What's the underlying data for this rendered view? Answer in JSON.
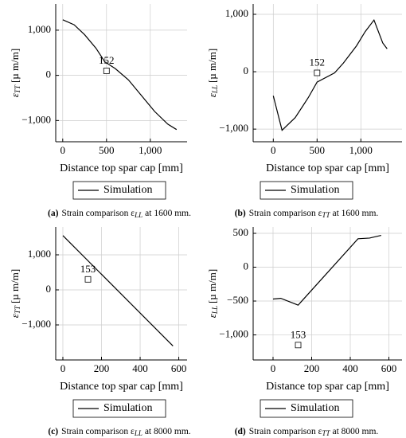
{
  "chart_data": [
    {
      "type": "line",
      "xlabel": "Distance top spar cap [mm]",
      "ylabel_symbol": "ε",
      "ylabel_sub": "TT",
      "ylabel_unit": "[µ m/m]",
      "caption_tag": "(a)",
      "caption_pre": "Strain comparison ε",
      "caption_sub": "LL",
      "caption_post": "at 1600 mm.",
      "x": [
        0,
        130,
        250,
        380,
        480,
        600,
        750,
        900,
        1050,
        1200,
        1300
      ],
      "series": [
        {
          "name": "Simulation",
          "color": "#000000",
          "values": [
            1230,
            1120,
            900,
            600,
            300,
            150,
            -100,
            -450,
            -800,
            -1080,
            -1200
          ]
        }
      ],
      "annotations": [
        {
          "text": "152",
          "x": 500,
          "y": 100
        }
      ],
      "xlim": [
        -80,
        1420
      ],
      "ylim": [
        -1470,
        1580
      ],
      "xticks": [
        0,
        500,
        {
          "value": 1000,
          "label": "1,000"
        }
      ],
      "yticks": [
        {
          "value": -1000,
          "label": "−1,000"
        },
        0,
        {
          "value": 1000,
          "label": "1,000"
        }
      ],
      "grid": true
    },
    {
      "type": "line",
      "xlabel": "Distance top spar cap [mm]",
      "ylabel_symbol": "ε",
      "ylabel_sub": "LL",
      "ylabel_unit": "[µ m/m]",
      "caption_tag": "(b)",
      "caption_pre": "Strain comparison ε",
      "caption_sub": "TT",
      "caption_post": "at 1600 mm.",
      "x": [
        0,
        100,
        250,
        400,
        500,
        700,
        800,
        950,
        1050,
        1150,
        1250,
        1300
      ],
      "series": [
        {
          "name": "Simulation",
          "color": "#000000",
          "values": [
            -420,
            -1020,
            -800,
            -450,
            -180,
            -20,
            150,
            450,
            700,
            900,
            500,
            400
          ]
        }
      ],
      "annotations": [
        {
          "text": "152",
          "x": 500,
          "y": -20
        }
      ],
      "xlim": [
        -230,
        1470
      ],
      "ylim": [
        -1220,
        1180
      ],
      "xticks": [
        0,
        500,
        {
          "value": 1000,
          "label": "1,000"
        }
      ],
      "yticks": [
        {
          "value": -1000,
          "label": "−1,000"
        },
        0,
        {
          "value": 1000,
          "label": "1,000"
        }
      ],
      "grid": true
    },
    {
      "type": "line",
      "xlabel": "Distance top spar cap [mm]",
      "ylabel_symbol": "ε",
      "ylabel_sub": "TT",
      "ylabel_unit": "[µ m/m]",
      "caption_tag": "(c)",
      "caption_pre": "Strain comparison ε",
      "caption_sub": "LL",
      "caption_post": "at 8000 mm.",
      "x": [
        0,
        570
      ],
      "series": [
        {
          "name": "Simulation",
          "color": "#000000",
          "values": [
            1550,
            -1600
          ]
        }
      ],
      "annotations": [
        {
          "text": "153",
          "x": 130,
          "y": 300
        }
      ],
      "xlim": [
        -37,
        643
      ],
      "ylim": [
        -2000,
        1795
      ],
      "xticks": [
        0,
        200,
        400,
        600
      ],
      "yticks": [
        {
          "value": -1000,
          "label": "−1,000"
        },
        0,
        {
          "value": 1000,
          "label": "1,000"
        }
      ],
      "grid": true
    },
    {
      "type": "line",
      "xlabel": "Distance top spar cap [mm]",
      "ylabel_symbol": "ε",
      "ylabel_sub": "LL",
      "ylabel_unit": "[µ m/m]",
      "caption_tag": "(d)",
      "caption_pre": "Strain comparison ε",
      "caption_sub": "TT",
      "caption_post": "at 8000 mm.",
      "x": [
        0,
        40,
        130,
        440,
        500,
        560
      ],
      "series": [
        {
          "name": "Simulation",
          "color": "#000000",
          "values": [
            -470,
            -460,
            -560,
            420,
            430,
            470
          ]
        }
      ],
      "annotations": [
        {
          "text": "153",
          "x": 130,
          "y": -1150
        }
      ],
      "xlim": [
        -103,
        668
      ],
      "ylim": [
        -1370,
        594
      ],
      "xticks": [
        0,
        200,
        400,
        600
      ],
      "yticks": [
        {
          "value": -1000,
          "label": "−1,000"
        },
        {
          "value": -500,
          "label": "−500"
        },
        0,
        500
      ],
      "grid": true
    }
  ]
}
